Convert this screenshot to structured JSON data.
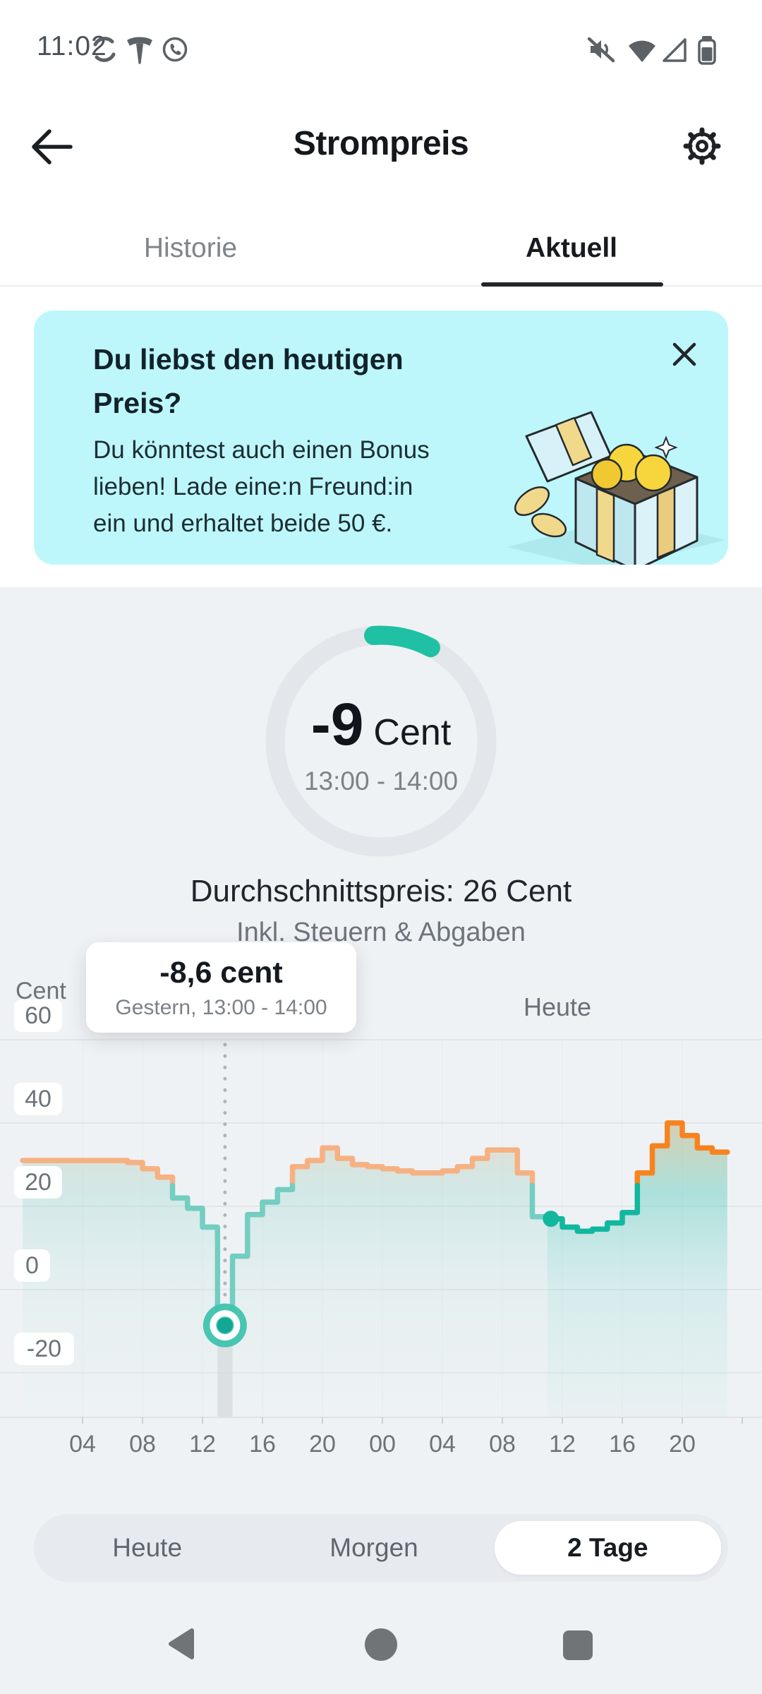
{
  "status_bar": {
    "time": "11:02",
    "left_icons": [
      "sync-icon",
      "tesla-icon",
      "whatsapp-icon"
    ],
    "right_icons": [
      "volume-muted-icon",
      "wifi-icon",
      "signal-icon",
      "battery-icon"
    ]
  },
  "header": {
    "title": "Strompreis"
  },
  "tabs": {
    "items": [
      {
        "label": "Historie",
        "active": false
      },
      {
        "label": "Aktuell",
        "active": true
      }
    ]
  },
  "banner": {
    "title_line1": "Du liebst den heutigen",
    "title_line2": "Preis?",
    "body_line1": "Du könntest auch einen Bonus",
    "body_line2": "lieben! Lade eine:n Freund:in",
    "body_line3": "ein und erhaltet beide 50 €.",
    "illustration": "gift-box-with-coins",
    "background_color": "#bdf7fb"
  },
  "gauge": {
    "price": "-9",
    "unit": "Cent",
    "time_range": "13:00 - 14:00",
    "progress_color": "#1fc0a4",
    "track_color": "#e3e6ea"
  },
  "summary": {
    "average": "Durchschnittspreis: 26 Cent",
    "taxes_note": "Inkl. Steuern & Abgaben"
  },
  "tooltip": {
    "price": "-8,6 cent",
    "time": "Gestern, 13:00 - 14:00"
  },
  "chart_data": {
    "type": "area",
    "unit": "Cent",
    "y_axis_label": "Cent",
    "y_ticks": [
      60,
      40,
      20,
      0,
      -20
    ],
    "ylim": [
      -27,
      64
    ],
    "grid": true,
    "x_ticks": [
      "04",
      "08",
      "12",
      "16",
      "20",
      "00",
      "04",
      "08",
      "12",
      "16",
      "20"
    ],
    "today_label": "Heute",
    "step": "1h",
    "series": [
      {
        "name": "Gestern",
        "values": [
          31,
          31,
          31,
          31,
          31,
          31,
          31,
          30.5,
          29,
          27,
          22,
          19.5,
          15,
          -8.6,
          8,
          18,
          21,
          24,
          29.5,
          31,
          34,
          31.5,
          30,
          29.5
        ]
      },
      {
        "name": "Heute",
        "values": [
          29,
          28.5,
          28,
          28,
          28.5,
          29.5,
          31.5,
          33.5,
          33.5,
          28,
          17.5,
          17,
          15,
          14,
          14.5,
          16,
          18.5,
          28,
          34.5,
          40,
          37,
          34,
          33
        ]
      }
    ],
    "selected_point": {
      "day": "Gestern",
      "hour": 13,
      "value": -8.6,
      "label": "-8,6 cent"
    },
    "now": {
      "day": "Heute",
      "hour": 11,
      "value": 17,
      "time": "11:02"
    },
    "high_threshold": 25,
    "price_high_color": "#f78320",
    "price_low_color": "#11b79f",
    "past_high_color": "#f6b183",
    "past_low_color": "#74cdc1"
  },
  "range_selector": {
    "options": [
      "Heute",
      "Morgen",
      "2 Tage"
    ],
    "selected": "2 Tage"
  },
  "nav_bar": {
    "icons": [
      "back-triangle-icon",
      "home-circle-icon",
      "recents-square-icon"
    ]
  }
}
